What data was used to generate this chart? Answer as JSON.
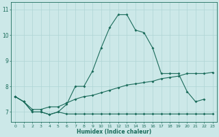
{
  "xlabel": "Humidex (Indice chaleur)",
  "ylabel": "",
  "background_color": "#cce8e8",
  "grid_color": "#aed4d4",
  "line_color": "#1a6b5a",
  "xlim": [
    -0.5,
    23.5
  ],
  "ylim": [
    6.6,
    11.3
  ],
  "yticks": [
    7,
    8,
    9,
    10,
    11
  ],
  "xticks": [
    0,
    1,
    2,
    3,
    4,
    5,
    6,
    7,
    8,
    9,
    10,
    11,
    12,
    13,
    14,
    15,
    16,
    17,
    18,
    19,
    20,
    21,
    22,
    23
  ],
  "series": [
    {
      "x": [
        0,
        1,
        2,
        3,
        4,
        5,
        6,
        7,
        8,
        9,
        10,
        11,
        12,
        13,
        14,
        15,
        16,
        17,
        18,
        19,
        20,
        21,
        22
      ],
      "y": [
        7.6,
        7.4,
        7.0,
        7.0,
        6.9,
        7.0,
        7.3,
        8.0,
        8.0,
        8.6,
        9.5,
        10.3,
        10.8,
        10.8,
        10.2,
        10.1,
        9.5,
        8.5,
        8.5,
        8.5,
        7.8,
        7.4,
        7.5
      ]
    },
    {
      "x": [
        0,
        1,
        2,
        3,
        4,
        5,
        6,
        7,
        8,
        9,
        10,
        11,
        12,
        13,
        14,
        15,
        16,
        17,
        18,
        19,
        20,
        21,
        22,
        23
      ],
      "y": [
        7.6,
        7.4,
        7.1,
        7.1,
        7.2,
        7.2,
        7.35,
        7.5,
        7.6,
        7.65,
        7.75,
        7.85,
        7.95,
        8.05,
        8.1,
        8.15,
        8.2,
        8.3,
        8.35,
        8.4,
        8.5,
        8.5,
        8.5,
        8.55
      ]
    },
    {
      "x": [
        0,
        1,
        2,
        3,
        4,
        5,
        6,
        7,
        8,
        9,
        10,
        11,
        12,
        13,
        14,
        15,
        16,
        17,
        18,
        19,
        20,
        21,
        22,
        23
      ],
      "y": [
        7.6,
        7.4,
        7.0,
        7.0,
        6.9,
        7.0,
        6.92,
        6.92,
        6.92,
        6.92,
        6.92,
        6.92,
        6.92,
        6.92,
        6.92,
        6.92,
        6.92,
        6.92,
        6.92,
        6.92,
        6.92,
        6.92,
        6.92,
        6.92
      ]
    }
  ]
}
